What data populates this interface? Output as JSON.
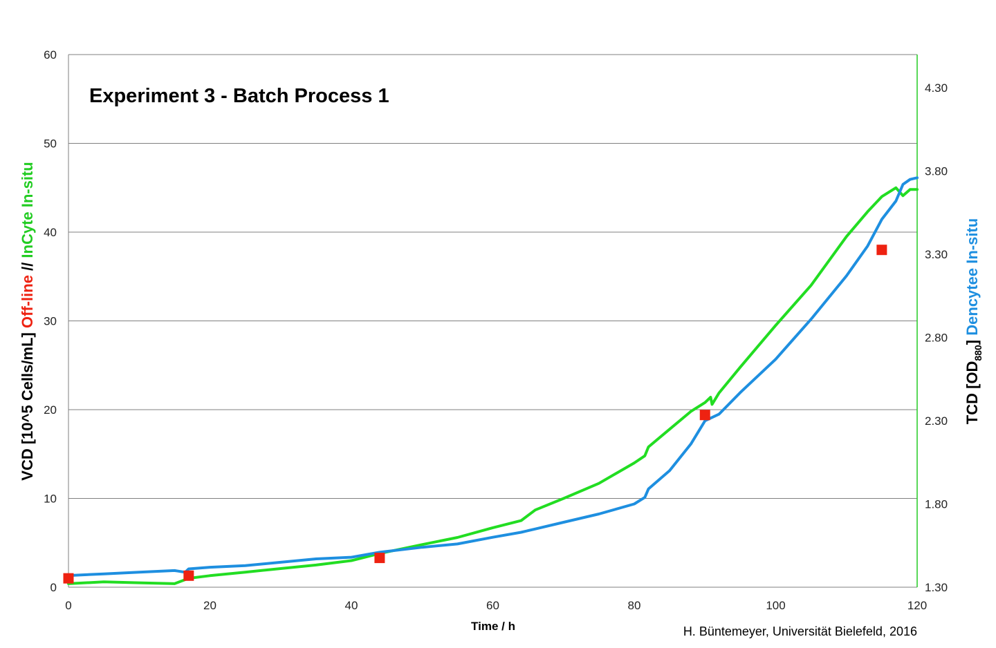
{
  "chart_data": {
    "type": "line",
    "title": "Experiment 3 -  Batch Process 1",
    "xlabel": "Time / h",
    "ylabel_left": {
      "prefix": "VCD [10^5 Cells/mL] ",
      "offline": "Off-line",
      "separator": " //  ",
      "incyte": "InCyte In-situ"
    },
    "ylabel_right": {
      "prefix": "TCD [OD",
      "subscript": "880",
      "suffix": "] ",
      "dencytee": "Dencytee  In-situ"
    },
    "credit": "H. Büntemeyer, Universität Bielefeld, 2016",
    "xlim": [
      0,
      120
    ],
    "ylim_left": [
      0,
      60
    ],
    "ylim_right": [
      1.3,
      4.5
    ],
    "x_ticks": [
      "0",
      "20",
      "40",
      "60",
      "80",
      "100",
      "120"
    ],
    "y_left_ticks": [
      "0",
      "10",
      "20",
      "30",
      "40",
      "50",
      "60"
    ],
    "y_right_ticks": [
      "1.30",
      "1.80",
      "2.30",
      "2.80",
      "3.30",
      "3.80",
      "4.30"
    ],
    "grid": true,
    "colors": {
      "offline": "#ee2211",
      "incyte": "#22dd22",
      "dencytee": "#1e8fe0",
      "axis": "#7f7f7f",
      "right_axis": "#22cc22",
      "grid": "#7f7f7f"
    },
    "series": [
      {
        "name": "Off-line",
        "axis": "left",
        "marker": "square",
        "x": [
          0,
          17,
          44,
          90,
          115
        ],
        "y": [
          1.0,
          1.3,
          3.3,
          19.4,
          38.0
        ]
      },
      {
        "name": "InCyte In-situ",
        "axis": "left",
        "marker": "none",
        "x": [
          0,
          5,
          10,
          15,
          17,
          20,
          25,
          30,
          35,
          40,
          44,
          50,
          55,
          60,
          64,
          66,
          70,
          75,
          80,
          81.5,
          82,
          85,
          88,
          90,
          90.8,
          91,
          92,
          95,
          100,
          105,
          110,
          113,
          115,
          117,
          118,
          119,
          120
        ],
        "y": [
          0.4,
          0.6,
          0.5,
          0.4,
          1.0,
          1.3,
          1.7,
          2.1,
          2.5,
          3.0,
          3.8,
          4.8,
          5.6,
          6.7,
          7.5,
          8.7,
          10.0,
          11.7,
          14.0,
          14.8,
          15.8,
          17.8,
          19.8,
          20.8,
          21.4,
          20.6,
          21.9,
          24.8,
          29.5,
          34.0,
          39.5,
          42.3,
          44.0,
          45.0,
          44.1,
          44.8,
          44.8
        ]
      },
      {
        "name": "Dencytee  In-situ",
        "axis": "right",
        "marker": "none",
        "x": [
          0,
          5,
          10,
          15,
          16.5,
          17,
          20,
          25,
          30,
          35,
          40,
          44,
          50,
          55,
          60,
          64,
          66,
          70,
          75,
          80,
          81.5,
          82,
          85,
          88,
          90,
          92,
          95,
          100,
          105,
          110,
          113,
          115,
          117,
          118,
          119,
          120
        ],
        "y": [
          1.37,
          1.38,
          1.39,
          1.4,
          1.39,
          1.41,
          1.42,
          1.43,
          1.45,
          1.47,
          1.48,
          1.51,
          1.54,
          1.56,
          1.6,
          1.63,
          1.65,
          1.69,
          1.74,
          1.8,
          1.84,
          1.89,
          2.0,
          2.16,
          2.3,
          2.34,
          2.47,
          2.67,
          2.91,
          3.17,
          3.35,
          3.51,
          3.62,
          3.72,
          3.75,
          3.76
        ]
      }
    ]
  }
}
